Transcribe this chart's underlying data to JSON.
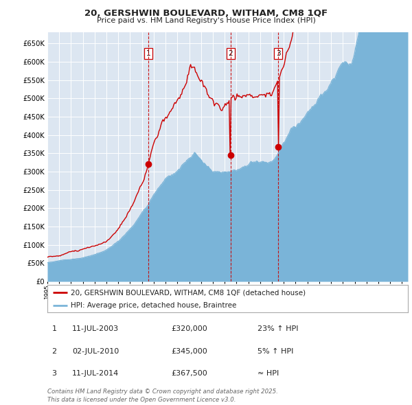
{
  "title": "20, GERSHWIN BOULEVARD, WITHAM, CM8 1QF",
  "subtitle": "Price paid vs. HM Land Registry's House Price Index (HPI)",
  "bg_color": "#dce6f1",
  "red_line_color": "#cc0000",
  "blue_line_color": "#7ab4d8",
  "vline_color": "#cc0000",
  "sale_points": [
    {
      "date_num": 2003.53,
      "price": 320000,
      "label": "1"
    },
    {
      "date_num": 2010.5,
      "price": 345000,
      "label": "2"
    },
    {
      "date_num": 2014.53,
      "price": 367500,
      "label": "3"
    }
  ],
  "legend_red_label": "20, GERSHWIN BOULEVARD, WITHAM, CM8 1QF (detached house)",
  "legend_blue_label": "HPI: Average price, detached house, Braintree",
  "table_rows": [
    {
      "num": "1",
      "date": "11-JUL-2003",
      "price": "£320,000",
      "hpi": "23% ↑ HPI"
    },
    {
      "num": "2",
      "date": "02-JUL-2010",
      "price": "£345,000",
      "hpi": "5% ↑ HPI"
    },
    {
      "num": "3",
      "date": "11-JUL-2014",
      "price": "£367,500",
      "hpi": "≈ HPI"
    }
  ],
  "footer": "Contains HM Land Registry data © Crown copyright and database right 2025.\nThis data is licensed under the Open Government Licence v3.0.",
  "ylim": [
    0,
    680000
  ],
  "xlim_start": 1995.0,
  "xlim_end": 2025.5
}
